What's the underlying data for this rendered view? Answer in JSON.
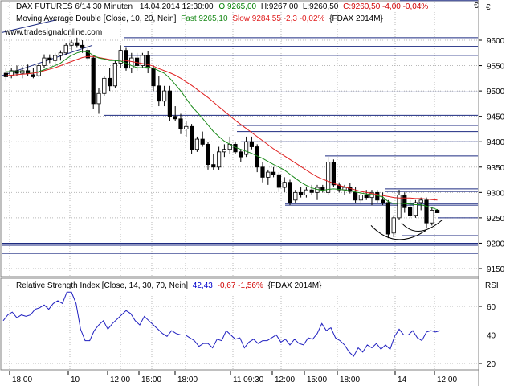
{
  "header": {
    "main_title": "DAX FUTURES 6/14 30 Minuten",
    "datetime": "14.04.2014 12:30:00",
    "open": "O:9265,00",
    "high": "H:9267,00",
    "low": "L:9260,50",
    "close": "C:9260,50 -4,00 -0,04%",
    "ma_label": "Moving Average Double [Close, 10, 20, Nein]",
    "ma_fast": "Fast 9265,10",
    "ma_slow": "Slow 9284,55 -2,3 -0,02%",
    "ma_symbol": "{FDAX 2014M}",
    "website": "www.tradesignalonline.com",
    "currency": "€"
  },
  "rsi_header": {
    "label": "Relative Strength Index [Close, 14, 30, 70, Nein]",
    "value": "42,43",
    "change": "-0,67 -1,56%",
    "symbol": "{FDAX 2014M}",
    "axis_title": "RSI"
  },
  "colors": {
    "candle": "#000000",
    "fast_ma": "#1a8a1a",
    "slow_ma": "#e02020",
    "rsi": "#2020c0",
    "hline": "#1c2a80",
    "grid": "#b8b8b8",
    "open_val": "#008000",
    "close_val": "#d00000",
    "rsi_val": "#0000cc",
    "rsi_change": "#d00000"
  },
  "chart_data": [
    {
      "type": "candlestick",
      "title": "DAX FUTURES 6/14 30 Minuten",
      "ylim": [
        9125,
        9640
      ],
      "y_ticks": [
        9150,
        9200,
        9250,
        9300,
        9350,
        9400,
        9450,
        9500,
        9550,
        9600
      ],
      "x_tick_labels": [
        "18:00",
        "10",
        "12:00",
        "15:00",
        "18:00",
        "11 09:30",
        "12:00",
        "15:00",
        "18:00",
        "14",
        "12:00"
      ],
      "candles": [
        {
          "o": 9535,
          "h": 9545,
          "l": 9520,
          "c": 9528
        },
        {
          "o": 9530,
          "h": 9545,
          "l": 9525,
          "c": 9540
        },
        {
          "o": 9540,
          "h": 9550,
          "l": 9530,
          "c": 9535
        },
        {
          "o": 9535,
          "h": 9548,
          "l": 9525,
          "c": 9540
        },
        {
          "o": 9540,
          "h": 9552,
          "l": 9530,
          "c": 9535
        },
        {
          "o": 9532,
          "h": 9545,
          "l": 9525,
          "c": 9528
        },
        {
          "o": 9530,
          "h": 9555,
          "l": 9528,
          "c": 9550
        },
        {
          "o": 9550,
          "h": 9572,
          "l": 9545,
          "c": 9565
        },
        {
          "o": 9565,
          "h": 9572,
          "l": 9555,
          "c": 9562
        },
        {
          "o": 9560,
          "h": 9575,
          "l": 9550,
          "c": 9570
        },
        {
          "o": 9570,
          "h": 9580,
          "l": 9560,
          "c": 9575
        },
        {
          "o": 9575,
          "h": 9595,
          "l": 9570,
          "c": 9590
        },
        {
          "o": 9590,
          "h": 9600,
          "l": 9580,
          "c": 9595
        },
        {
          "o": 9595,
          "h": 9605,
          "l": 9585,
          "c": 9590
        },
        {
          "o": 9590,
          "h": 9600,
          "l": 9575,
          "c": 9585
        },
        {
          "o": 9580,
          "h": 9590,
          "l": 9560,
          "c": 9565
        },
        {
          "o": 9565,
          "h": 9570,
          "l": 9465,
          "c": 9475
        },
        {
          "o": 9475,
          "h": 9505,
          "l": 9455,
          "c": 9495
        },
        {
          "o": 9495,
          "h": 9530,
          "l": 9490,
          "c": 9525
        },
        {
          "o": 9525,
          "h": 9545,
          "l": 9500,
          "c": 9510
        },
        {
          "o": 9510,
          "h": 9560,
          "l": 9505,
          "c": 9555
        },
        {
          "o": 9555,
          "h": 9590,
          "l": 9545,
          "c": 9580
        },
        {
          "o": 9580,
          "h": 9585,
          "l": 9540,
          "c": 9545
        },
        {
          "o": 9545,
          "h": 9575,
          "l": 9535,
          "c": 9565
        },
        {
          "o": 9565,
          "h": 9575,
          "l": 9540,
          "c": 9550
        },
        {
          "o": 9550,
          "h": 9575,
          "l": 9545,
          "c": 9570
        },
        {
          "o": 9570,
          "h": 9578,
          "l": 9535,
          "c": 9545
        },
        {
          "o": 9545,
          "h": 9550,
          "l": 9500,
          "c": 9510
        },
        {
          "o": 9510,
          "h": 9530,
          "l": 9470,
          "c": 9480
        },
        {
          "o": 9480,
          "h": 9510,
          "l": 9470,
          "c": 9500
        },
        {
          "o": 9500,
          "h": 9510,
          "l": 9440,
          "c": 9450
        },
        {
          "o": 9450,
          "h": 9470,
          "l": 9440,
          "c": 9445
        },
        {
          "o": 9445,
          "h": 9455,
          "l": 9415,
          "c": 9425
        },
        {
          "o": 9425,
          "h": 9440,
          "l": 9410,
          "c": 9430
        },
        {
          "o": 9430,
          "h": 9435,
          "l": 9375,
          "c": 9385
        },
        {
          "o": 9385,
          "h": 9410,
          "l": 9380,
          "c": 9405
        },
        {
          "o": 9405,
          "h": 9420,
          "l": 9390,
          "c": 9395
        },
        {
          "o": 9395,
          "h": 9400,
          "l": 9345,
          "c": 9355
        },
        {
          "o": 9355,
          "h": 9375,
          "l": 9345,
          "c": 9350
        },
        {
          "o": 9350,
          "h": 9390,
          "l": 9345,
          "c": 9380
        },
        {
          "o": 9380,
          "h": 9395,
          "l": 9370,
          "c": 9385
        },
        {
          "o": 9385,
          "h": 9410,
          "l": 9375,
          "c": 9395
        },
        {
          "o": 9395,
          "h": 9400,
          "l": 9375,
          "c": 9380
        },
        {
          "o": 9380,
          "h": 9385,
          "l": 9360,
          "c": 9370
        },
        {
          "o": 9375,
          "h": 9410,
          "l": 9370,
          "c": 9400
        },
        {
          "o": 9400,
          "h": 9410,
          "l": 9385,
          "c": 9390
        },
        {
          "o": 9390,
          "h": 9395,
          "l": 9340,
          "c": 9350
        },
        {
          "o": 9350,
          "h": 9360,
          "l": 9320,
          "c": 9330
        },
        {
          "o": 9330,
          "h": 9345,
          "l": 9315,
          "c": 9340
        },
        {
          "o": 9340,
          "h": 9350,
          "l": 9330,
          "c": 9335
        },
        {
          "o": 9335,
          "h": 9340,
          "l": 9300,
          "c": 9310
        },
        {
          "o": 9310,
          "h": 9330,
          "l": 9300,
          "c": 9320
        },
        {
          "o": 9320,
          "h": 9325,
          "l": 9275,
          "c": 9280
        },
        {
          "o": 9285,
          "h": 9305,
          "l": 9280,
          "c": 9300
        },
        {
          "o": 9300,
          "h": 9310,
          "l": 9290,
          "c": 9295
        },
        {
          "o": 9295,
          "h": 9310,
          "l": 9290,
          "c": 9305
        },
        {
          "o": 9305,
          "h": 9315,
          "l": 9295,
          "c": 9300
        },
        {
          "o": 9300,
          "h": 9315,
          "l": 9285,
          "c": 9310
        },
        {
          "o": 9310,
          "h": 9315,
          "l": 9300,
          "c": 9305
        },
        {
          "o": 9300,
          "h": 9370,
          "l": 9295,
          "c": 9360
        },
        {
          "o": 9360,
          "h": 9365,
          "l": 9310,
          "c": 9315
        },
        {
          "o": 9315,
          "h": 9320,
          "l": 9300,
          "c": 9305
        },
        {
          "o": 9305,
          "h": 9315,
          "l": 9295,
          "c": 9310
        },
        {
          "o": 9310,
          "h": 9318,
          "l": 9298,
          "c": 9302
        },
        {
          "o": 9300,
          "h": 9310,
          "l": 9280,
          "c": 9285
        },
        {
          "o": 9285,
          "h": 9300,
          "l": 9280,
          "c": 9295
        },
        {
          "o": 9295,
          "h": 9305,
          "l": 9285,
          "c": 9290
        },
        {
          "o": 9290,
          "h": 9305,
          "l": 9275,
          "c": 9300
        },
        {
          "o": 9300,
          "h": 9305,
          "l": 9280,
          "c": 9285
        },
        {
          "o": 9285,
          "h": 9300,
          "l": 9275,
          "c": 9280
        },
        {
          "o": 9280,
          "h": 9285,
          "l": 9210,
          "c": 9218
        },
        {
          "o": 9220,
          "h": 9255,
          "l": 9212,
          "c": 9250
        },
        {
          "o": 9250,
          "h": 9305,
          "l": 9245,
          "c": 9295
        },
        {
          "o": 9295,
          "h": 9300,
          "l": 9260,
          "c": 9270
        },
        {
          "o": 9270,
          "h": 9285,
          "l": 9250,
          "c": 9255
        },
        {
          "o": 9255,
          "h": 9285,
          "l": 9250,
          "c": 9280
        },
        {
          "o": 9280,
          "h": 9290,
          "l": 9265,
          "c": 9285
        },
        {
          "o": 9285,
          "h": 9290,
          "l": 9230,
          "c": 9240
        },
        {
          "o": 9240,
          "h": 9270,
          "l": 9235,
          "c": 9265
        },
        {
          "o": 9265,
          "h": 9267,
          "l": 9260,
          "c": 9260
        }
      ],
      "fast_ma": [
        9538,
        9538,
        9538,
        9538,
        9537,
        9537,
        9538,
        9542,
        9546,
        9550,
        9555,
        9563,
        9570,
        9575,
        9578,
        9577,
        9570,
        9565,
        9563,
        9560,
        9560,
        9559,
        9555,
        9550,
        9546,
        9546,
        9547,
        9545,
        9540,
        9535,
        9525,
        9513,
        9500,
        9485,
        9470,
        9458,
        9446,
        9433,
        9420,
        9410,
        9401,
        9395,
        9389,
        9385,
        9381,
        9377,
        9372,
        9367,
        9361,
        9355,
        9350,
        9344,
        9336,
        9328,
        9320,
        9314,
        9309,
        9306,
        9304,
        9306,
        9307,
        9306,
        9305,
        9303,
        9301,
        9299,
        9297,
        9296,
        9294,
        9291,
        9282,
        9278,
        9279,
        9278,
        9277,
        9276,
        9276,
        9273,
        9270,
        9266
      ],
      "slow_ma": [
        9530,
        9531,
        9532,
        9533,
        9534,
        9535,
        9537,
        9540,
        9543,
        9546,
        9550,
        9554,
        9558,
        9562,
        9566,
        9568,
        9568,
        9566,
        9564,
        9562,
        9561,
        9561,
        9560,
        9558,
        9556,
        9554,
        9552,
        9549,
        9544,
        9540,
        9536,
        9531,
        9525,
        9518,
        9511,
        9503,
        9495,
        9487,
        9478,
        9469,
        9460,
        9451,
        9442,
        9434,
        9426,
        9418,
        9410,
        9402,
        9394,
        9386,
        9379,
        9372,
        9365,
        9358,
        9351,
        9344,
        9337,
        9331,
        9326,
        9322,
        9318,
        9314,
        9311,
        9308,
        9305,
        9302,
        9300,
        9298,
        9296,
        9294,
        9292,
        9290,
        9289,
        9289,
        9289,
        9288,
        9288,
        9287,
        9286,
        9285
      ]
    },
    {
      "type": "line",
      "title": "Relative Strength Index",
      "ylim": [
        18,
        70
      ],
      "y_ticks": [
        20,
        40,
        60
      ],
      "series": [
        {
          "values": [
            50,
            54,
            56,
            52,
            54,
            53,
            54,
            58,
            59,
            61,
            58,
            62,
            64,
            62,
            70,
            70,
            62,
            44,
            36,
            36,
            43,
            47,
            50,
            44,
            48,
            51,
            54,
            57,
            55,
            50,
            47,
            53,
            50,
            47,
            44,
            41,
            39,
            43,
            41,
            40,
            40,
            38,
            36,
            32,
            34,
            34,
            31,
            37,
            36,
            43,
            40,
            37,
            38,
            31,
            35,
            37,
            34,
            36,
            36,
            38,
            40,
            35,
            37,
            33,
            37,
            34,
            33,
            38,
            37,
            41,
            48,
            43,
            45,
            38,
            36,
            33,
            28,
            25,
            31,
            28,
            33,
            31,
            34,
            30,
            33,
            30,
            39,
            44,
            40,
            40,
            43,
            38,
            36,
            42,
            43,
            42,
            43
          ]
        }
      ]
    }
  ]
}
